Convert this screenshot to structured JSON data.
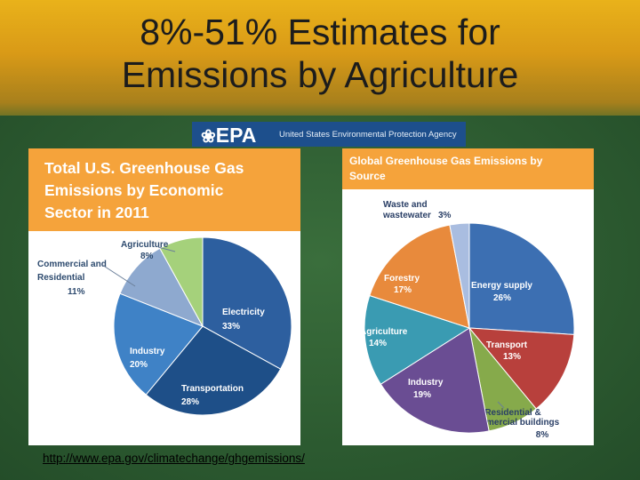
{
  "slide": {
    "title_line1": "8%-51% Estimates for",
    "title_line2": "Emissions by Agriculture",
    "link": "http://www.epa.gov/climatechange/ghgemissions/"
  },
  "epa": {
    "logo": "EPA",
    "agency": "United States Environmental Protection Agency"
  },
  "colors": {
    "header_orange": "#f5a33b",
    "epa_blue": "#1d4f8c"
  },
  "chart_data": [
    {
      "type": "pie",
      "title": "Total U.S. Greenhouse Gas Emissions by Economic Sector in 2011",
      "title_lines": [
        "Total U.S. Greenhouse Gas",
        "Emissions by Economic",
        "Sector in 2011"
      ],
      "slices": [
        {
          "label": "Electricity",
          "value": 33,
          "value_label": "33%",
          "color": "#2d5f9f"
        },
        {
          "label": "Transportation",
          "value": 28,
          "value_label": "28%",
          "color": "#1e4f88"
        },
        {
          "label": "Industry",
          "value": 20,
          "value_label": "20%",
          "color": "#3f82c6"
        },
        {
          "label": "Commercial and Residential",
          "value": 11,
          "value_label": "11%",
          "color": "#8ea9cf",
          "lines": [
            "Commercial and",
            "Residential"
          ]
        },
        {
          "label": "Agriculture",
          "value": 8,
          "value_label": "8%",
          "color": "#a5d17b"
        }
      ]
    },
    {
      "type": "pie",
      "title": "Global Greenhouse Gas Emissions by Source",
      "title_lines": [
        "Global Greenhouse Gas Emissions by",
        "Source"
      ],
      "slices": [
        {
          "label": "Energy supply",
          "value": 26,
          "value_label": "26%",
          "color": "#3c6fb2"
        },
        {
          "label": "Transport",
          "value": 13,
          "value_label": "13%",
          "color": "#b8403c"
        },
        {
          "label": "Residential & Commercial buildings",
          "value": 8,
          "value_label": "8%",
          "color": "#86aa4b",
          "lines": [
            "Residential &",
            "Commercial buildings"
          ]
        },
        {
          "label": "Industry",
          "value": 19,
          "value_label": "19%",
          "color": "#6a4d93"
        },
        {
          "label": "Agriculture",
          "value": 14,
          "value_label": "14%",
          "color": "#3a9bb2"
        },
        {
          "label": "Forestry",
          "value": 17,
          "value_label": "17%",
          "color": "#e88a3c"
        },
        {
          "label": "Waste and wastewater",
          "value": 3,
          "value_label": "3%",
          "color": "#a9bde0",
          "lines": [
            "Waste and",
            "wastewater"
          ]
        }
      ]
    }
  ]
}
